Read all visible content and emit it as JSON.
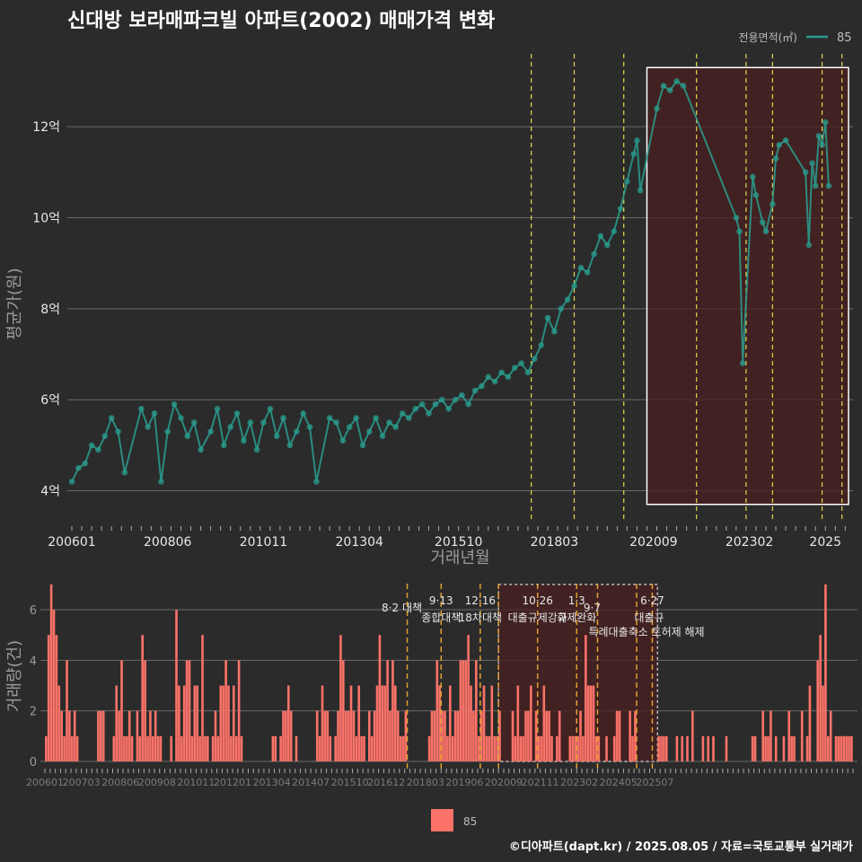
{
  "title": "신대방 보라매파크빌 아파트(2002) 매매가격 변화",
  "legend_top": {
    "label": "전용면적(㎡)",
    "series": "85"
  },
  "legend_bottom": {
    "series": "85"
  },
  "footer": "©디아파트(dapt.kr) / 2025.08.05 / 자료=국토교통부 실거래가",
  "colors": {
    "background": "#2b2b2b",
    "line": "#2a9d8f",
    "bar": "#fa7268",
    "highlight_edge": "#ffffff",
    "highlight_fill": "#4a1f1f",
    "policy_line_top": "#e3d94a",
    "policy_line_bottom": "#e0a030"
  },
  "chart_data": [
    {
      "type": "line",
      "title": "신대방 보라매파크빌 아파트(2002) 매매가격 변화",
      "xlabel": "거래년월",
      "ylabel": "평균가(원)",
      "x_ticks": [
        "200601",
        "200806",
        "201011",
        "201304",
        "201510",
        "201803",
        "202009",
        "202302",
        "2025"
      ],
      "y_ticks": [
        "4억",
        "6억",
        "8억",
        "10억",
        "12억"
      ],
      "ylim": [
        3.3,
        13.7
      ],
      "y_unit": "억",
      "grid": true,
      "legend_position": "top-right",
      "series": [
        {
          "name": "85",
          "points": [
            [
              "2006-01",
              4.2
            ],
            [
              "2006-03",
              4.5
            ],
            [
              "2006-05",
              4.6
            ],
            [
              "2006-07",
              5.0
            ],
            [
              "2006-09",
              4.9
            ],
            [
              "2006-11",
              5.2
            ],
            [
              "2007-01",
              5.6
            ],
            [
              "2007-03",
              5.3
            ],
            [
              "2007-05",
              4.4
            ],
            [
              "2007-10",
              5.8
            ],
            [
              "2007-12",
              5.4
            ],
            [
              "2008-02",
              5.7
            ],
            [
              "2008-04",
              4.2
            ],
            [
              "2008-06",
              5.3
            ],
            [
              "2008-08",
              5.9
            ],
            [
              "2008-10",
              5.6
            ],
            [
              "2008-12",
              5.2
            ],
            [
              "2009-02",
              5.5
            ],
            [
              "2009-04",
              4.9
            ],
            [
              "2009-07",
              5.3
            ],
            [
              "2009-09",
              5.8
            ],
            [
              "2009-11",
              5.0
            ],
            [
              "2010-01",
              5.4
            ],
            [
              "2010-03",
              5.7
            ],
            [
              "2010-05",
              5.1
            ],
            [
              "2010-07",
              5.5
            ],
            [
              "2010-09",
              4.9
            ],
            [
              "2010-11",
              5.5
            ],
            [
              "2011-01",
              5.8
            ],
            [
              "2011-03",
              5.2
            ],
            [
              "2011-05",
              5.6
            ],
            [
              "2011-07",
              5.0
            ],
            [
              "2011-09",
              5.3
            ],
            [
              "2011-11",
              5.7
            ],
            [
              "2012-01",
              5.4
            ],
            [
              "2012-03",
              4.2
            ],
            [
              "2012-07",
              5.6
            ],
            [
              "2012-09",
              5.5
            ],
            [
              "2012-11",
              5.1
            ],
            [
              "2013-01",
              5.4
            ],
            [
              "2013-03",
              5.6
            ],
            [
              "2013-05",
              5.0
            ],
            [
              "2013-07",
              5.3
            ],
            [
              "2013-09",
              5.6
            ],
            [
              "2013-11",
              5.2
            ],
            [
              "2014-01",
              5.5
            ],
            [
              "2014-03",
              5.4
            ],
            [
              "2014-05",
              5.7
            ],
            [
              "2014-07",
              5.6
            ],
            [
              "2014-09",
              5.8
            ],
            [
              "2014-11",
              5.9
            ],
            [
              "2015-01",
              5.7
            ],
            [
              "2015-03",
              5.9
            ],
            [
              "2015-05",
              6.0
            ],
            [
              "2015-07",
              5.8
            ],
            [
              "2015-09",
              6.0
            ],
            [
              "2015-11",
              6.1
            ],
            [
              "2016-01",
              5.9
            ],
            [
              "2016-03",
              6.2
            ],
            [
              "2016-05",
              6.3
            ],
            [
              "2016-07",
              6.5
            ],
            [
              "2016-09",
              6.4
            ],
            [
              "2016-11",
              6.6
            ],
            [
              "2017-01",
              6.5
            ],
            [
              "2017-03",
              6.7
            ],
            [
              "2017-05",
              6.8
            ],
            [
              "2017-07",
              6.6
            ],
            [
              "2017-09",
              6.9
            ],
            [
              "2017-11",
              7.2
            ],
            [
              "2018-01",
              7.8
            ],
            [
              "2018-03",
              7.5
            ],
            [
              "2018-05",
              8.0
            ],
            [
              "2018-07",
              8.2
            ],
            [
              "2018-09",
              8.5
            ],
            [
              "2018-11",
              8.9
            ],
            [
              "2019-01",
              8.8
            ],
            [
              "2019-03",
              9.2
            ],
            [
              "2019-05",
              9.6
            ],
            [
              "2019-07",
              9.4
            ],
            [
              "2019-09",
              9.7
            ],
            [
              "2019-11",
              10.2
            ],
            [
              "2020-01",
              10.8
            ],
            [
              "2020-03",
              11.4
            ],
            [
              "2020-04",
              11.7
            ],
            [
              "2020-05",
              10.6
            ],
            [
              "2020-10",
              12.4
            ],
            [
              "2020-12",
              12.9
            ],
            [
              "2021-02",
              12.8
            ],
            [
              "2021-04",
              13.0
            ],
            [
              "2021-06",
              12.9
            ],
            [
              "2022-10",
              10.0
            ],
            [
              "2022-11",
              9.7
            ],
            [
              "2022-12",
              6.8
            ],
            [
              "2023-03",
              10.9
            ],
            [
              "2023-04",
              10.5
            ],
            [
              "2023-06",
              9.9
            ],
            [
              "2023-07",
              9.7
            ],
            [
              "2023-09",
              10.3
            ],
            [
              "2023-10",
              11.3
            ],
            [
              "2023-11",
              11.6
            ],
            [
              "2024-01",
              11.7
            ],
            [
              "2024-07",
              11.0
            ],
            [
              "2024-08",
              9.4
            ],
            [
              "2024-09",
              11.2
            ],
            [
              "2024-10",
              10.7
            ],
            [
              "2024-11",
              11.8
            ],
            [
              "2024-12",
              11.6
            ],
            [
              "2025-01",
              12.1
            ],
            [
              "2025-02",
              10.7
            ]
          ]
        }
      ],
      "policy_dates": [
        "2017-08",
        "2018-09",
        "2019-12",
        "2021-10",
        "2023-01",
        "2023-09",
        "2024-12",
        "2025-06"
      ],
      "highlight": {
        "x": [
          "2020-07",
          "2025-08"
        ],
        "y": [
          3.7,
          13.3
        ]
      }
    },
    {
      "type": "bar",
      "ylabel": "거래량(건)",
      "x_ticks": [
        "200601",
        "200703",
        "200806",
        "200908",
        "201011",
        "201201",
        "201304",
        "201407",
        "201510",
        "201612",
        "201803",
        "201906",
        "202009",
        "202111",
        "202302",
        "202405",
        "202507"
      ],
      "y_ticks": [
        "0",
        "2",
        "4",
        "6"
      ],
      "ylim": [
        0,
        7.1
      ],
      "series": [
        {
          "name": "85",
          "start": "2006-01",
          "values": [
            1,
            5,
            7,
            6,
            5,
            3,
            2,
            1,
            4,
            2,
            1,
            2,
            1,
            0,
            0,
            0,
            0,
            0,
            0,
            0,
            2,
            2,
            2,
            0,
            0,
            0,
            1,
            3,
            2,
            4,
            1,
            1,
            2,
            1,
            0,
            2,
            1,
            5,
            4,
            1,
            2,
            1,
            2,
            1,
            1,
            0,
            0,
            0,
            1,
            0,
            6,
            3,
            1,
            3,
            4,
            4,
            1,
            3,
            3,
            1,
            5,
            1,
            1,
            0,
            1,
            2,
            1,
            3,
            3,
            4,
            3,
            1,
            3,
            1,
            4,
            1,
            0,
            0,
            0,
            0,
            0,
            0,
            0,
            0,
            0,
            0,
            0,
            1,
            1,
            0,
            1,
            2,
            2,
            3,
            2,
            0,
            1,
            0,
            0,
            0,
            0,
            0,
            0,
            0,
            2,
            1,
            3,
            2,
            2,
            1,
            0,
            1,
            2,
            5,
            4,
            2,
            2,
            3,
            2,
            1,
            3,
            1,
            1,
            0,
            2,
            1,
            2,
            3,
            5,
            3,
            3,
            4,
            2,
            4,
            3,
            2,
            1,
            1,
            2,
            0,
            0,
            0,
            0,
            0,
            0,
            0,
            0,
            1,
            2,
            2,
            4,
            3,
            2,
            2,
            1,
            3,
            1,
            2,
            2,
            4,
            4,
            4,
            5,
            3,
            2,
            4,
            1,
            2,
            3,
            1,
            1,
            3,
            1,
            1,
            2,
            0,
            0,
            0,
            0,
            2,
            1,
            3,
            1,
            1,
            2,
            2,
            3,
            0,
            2,
            1,
            1,
            3,
            2,
            2,
            1,
            0,
            1,
            2,
            0,
            0,
            0,
            1,
            1,
            1,
            1,
            2,
            1,
            5,
            3,
            3,
            3,
            1,
            1,
            0,
            0,
            1,
            0,
            0,
            1,
            2,
            2,
            0,
            0,
            0,
            2,
            1,
            2,
            0,
            0,
            0,
            0,
            0,
            0,
            0,
            0,
            1,
            1,
            1,
            1,
            0,
            0,
            0,
            1,
            0,
            1,
            0,
            1,
            0,
            2,
            0,
            0,
            0,
            1,
            0,
            1,
            0,
            1,
            0,
            0,
            0,
            0,
            1,
            0,
            0,
            0,
            0,
            0,
            0,
            0,
            0,
            0,
            1,
            1,
            0,
            0,
            2,
            1,
            1,
            2,
            0,
            1,
            0,
            0,
            1,
            0,
            2,
            1,
            1,
            0,
            0,
            2,
            0,
            1,
            3,
            0,
            0,
            4,
            5,
            3,
            7,
            1,
            2,
            0,
            1,
            1,
            1,
            1,
            1,
            1,
            1
          ]
        }
      ],
      "policy_dates": [
        "2017-08",
        "2018-09",
        "2019-12",
        "2020-07",
        "2021-10",
        "2023-01",
        "2023-09",
        "2024-12",
        "2025-06"
      ],
      "policy_labels": [
        {
          "date": "2017-08",
          "line1": "",
          "line2": "8·2 대책"
        },
        {
          "date": "2018-09",
          "line1": "9·13",
          "line2": "종합대책"
        },
        {
          "date": "2019-12",
          "line1": "12·16",
          "line2": "18차대책"
        },
        {
          "date": "2021-10",
          "line1": "10·26",
          "line2": "대출규제강화"
        },
        {
          "date": "2023-01",
          "line1": "1·3",
          "line2": "규제완화"
        },
        {
          "date": "2023-09",
          "line1": "",
          "line2": "9·7",
          "line3": "특례대출축소 토허제 해제"
        },
        {
          "date": "2025-06",
          "line1": "6·27",
          "line2": "대출규"
        }
      ],
      "highlight": {
        "x": [
          "2020-07",
          "2025-08"
        ],
        "y": [
          0,
          7.0
        ]
      }
    }
  ]
}
